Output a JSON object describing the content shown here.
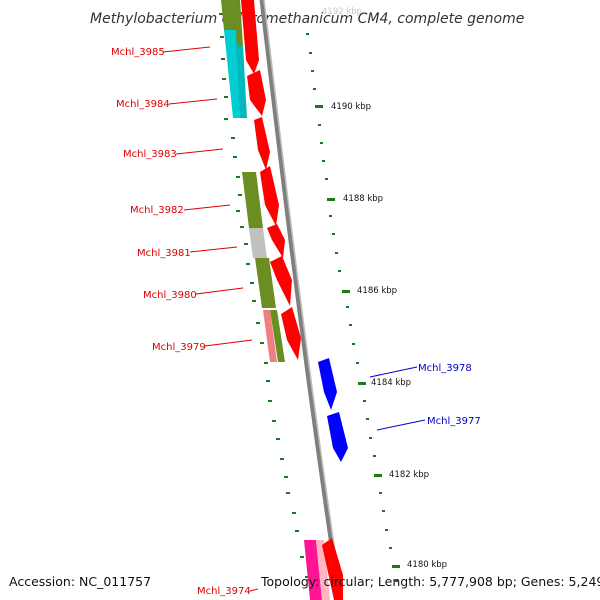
{
  "title": "Methylobacterium chloromethanicum CM4, complete genome",
  "footer": {
    "accession": "Accession: NC_011757",
    "topology": "Topology: circular; Length: 5,777,908 bp; Genes: 5,249"
  },
  "scale_labels": [
    "4190 kbp",
    "4188 kbp",
    "4186 kbp",
    "4184 kbp",
    "4182 kbp",
    "4180 kbp"
  ],
  "top_partial_label": "4192 kbp",
  "genes_left": [
    "Mchl_3985",
    "Mchl_3984",
    "Mchl_3983",
    "Mchl_3982",
    "Mchl_3981",
    "Mchl_3980",
    "Mchl_3979",
    "Mchl_3974"
  ],
  "genes_right": [
    "Mchl_3978",
    "Mchl_3977"
  ],
  "colors": {
    "forward_gene": "#ff0000",
    "reverse_gene": "#0000ff",
    "cog_olive": "#6b8e23",
    "cog_cyan": "#00ced1",
    "cog_gray": "#c0c0c0",
    "cog_pink": "#ff1493",
    "cog_salmon": "#f08080",
    "tick_green": "#1a7a1a",
    "backbone": "#7f7f7f"
  }
}
